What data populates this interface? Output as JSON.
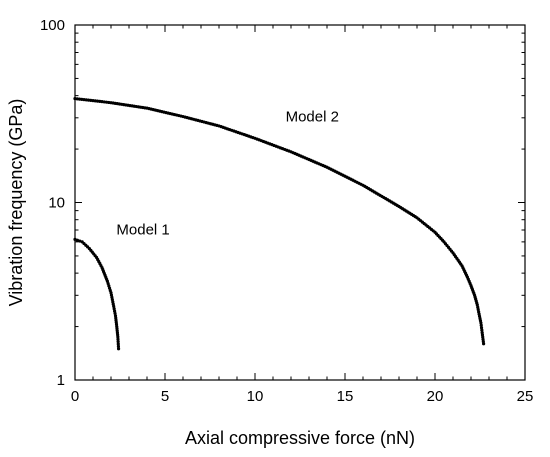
{
  "chart_data": {
    "type": "scatter",
    "title": "",
    "xlabel": "Axial compressive force (nN)",
    "ylabel": "Vibration frequency (GPa)",
    "xlim": [
      0,
      25
    ],
    "ylim": [
      1,
      100
    ],
    "yscale": "log",
    "grid": false,
    "x_ticks": [
      0,
      5,
      10,
      15,
      20,
      25
    ],
    "x_tick_labels": [
      "0",
      "5",
      "10",
      "15",
      "20",
      "25"
    ],
    "y_ticks": [
      1,
      10,
      100
    ],
    "y_tick_labels": [
      "1",
      "10",
      "100"
    ],
    "annotations": [
      {
        "text": "Model 1",
        "x": 2.3,
        "y": 6.6
      },
      {
        "text": "Model 2",
        "x": 11.7,
        "y": 28.6
      }
    ],
    "series": [
      {
        "name": "Model 1",
        "x": [
          0,
          0.4,
          0.8,
          1.2,
          1.5,
          1.8,
          2.0,
          2.15,
          2.25,
          2.32,
          2.38,
          2.42
        ],
        "y": [
          6.2,
          6.0,
          5.5,
          4.9,
          4.3,
          3.6,
          3.1,
          2.6,
          2.3,
          2.0,
          1.75,
          1.5
        ]
      },
      {
        "name": "Model 2",
        "x": [
          0,
          2,
          4,
          6,
          8,
          10,
          12,
          14,
          16,
          18,
          19,
          20,
          20.5,
          21,
          21.5,
          21.8,
          22.0,
          22.2,
          22.35,
          22.45,
          22.55,
          22.62,
          22.7
        ],
        "y": [
          38.5,
          36.5,
          34,
          30.5,
          27,
          23,
          19.3,
          15.8,
          12.5,
          9.5,
          8.2,
          6.8,
          6.0,
          5.2,
          4.4,
          3.8,
          3.4,
          3.0,
          2.65,
          2.35,
          2.1,
          1.85,
          1.6
        ]
      }
    ]
  }
}
